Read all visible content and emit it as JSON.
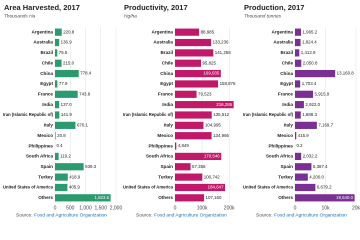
{
  "chart_data": [
    {
      "type": "bar",
      "orientation": "horizontal",
      "title": "Area Harvested, 2017",
      "subtitle": "Thousands Ha",
      "color": "#2b9a6e",
      "categories": [
        "Argentina",
        "Australia",
        "Brazil",
        "Chile",
        "China",
        "Egypt",
        "France",
        "India",
        "Iran (Islamic Republic of)",
        "Italy",
        "Mexico",
        "Philippines",
        "South Africa",
        "Spain",
        "Turkey",
        "United States of America",
        "Others"
      ],
      "values": [
        220.8,
        136.9,
        75.5,
        215.0,
        778.4,
        77.9,
        743.8,
        137.0,
        141.9,
        670.1,
        20.8,
        0.4,
        119.2,
        939.3,
        418.9,
        405.9,
        1823.5
      ],
      "value_labels": [
        "220.8",
        "136.9",
        "75.5",
        "215.0",
        "778.4",
        "77.9",
        "743.8",
        "137.0",
        "141.9",
        "670.1",
        "20.8",
        "0.4",
        "119.2",
        "939.3",
        "418.9",
        "405.9",
        "1,823.5"
      ],
      "xlim": [
        0,
        2000
      ],
      "xticks": [
        0,
        500,
        {
          "value": 1000,
          "label": "1,000"
        },
        {
          "value": 1500,
          "label": "1,500"
        },
        {
          "value": 2000,
          "label": "2,000"
        }
      ],
      "grid": true,
      "source_label": "Source:",
      "source": "Food and Agriculture Organization"
    },
    {
      "type": "bar",
      "orientation": "horizontal",
      "title": "Productivity, 2017",
      "subtitle": "Hg/ha",
      "color": "#c2186a",
      "categories": [
        "Argentina",
        "Australia",
        "Brazil",
        "Chile",
        "China",
        "Egypt",
        "France",
        "India",
        "Iran (Islamic Republic of)",
        "Italy",
        "Mexico",
        "Philippines",
        "South Africa",
        "Spain",
        "Turkey",
        "United States of America",
        "Others"
      ],
      "values": [
        88985,
        133236,
        141258,
        95825,
        169035,
        158876,
        79523,
        216285,
        135512,
        104995,
        134966,
        4849,
        170546,
        57356,
        100742,
        184647,
        107160
      ],
      "value_labels": [
        "88,985",
        "133,236",
        "141,258",
        "95,825",
        "169,035",
        "158,876",
        "79,523",
        "216,285",
        "135,512",
        "104,995",
        "134,966",
        "4,849",
        "170,546",
        "57,356",
        "100,742",
        "184,647",
        "107,160"
      ],
      "xlim": [
        0,
        225000
      ],
      "xticks": [
        0,
        {
          "value": 100000,
          "label": "100k"
        },
        {
          "value": 200000,
          "label": "200k"
        }
      ],
      "grid": true,
      "source_label": "Source:",
      "source": "Food and Agriculture Organization"
    },
    {
      "type": "bar",
      "orientation": "horizontal",
      "title": "Production, 2017",
      "subtitle": "Thousand tonnes",
      "color": "#7b2f92",
      "categories": [
        "Argentina",
        "Australia",
        "Brazil",
        "Chile",
        "China",
        "Egypt",
        "France",
        "India",
        "Iran (Islamic Republic of)",
        "Italy",
        "Mexico",
        "Philippines",
        "South Africa",
        "Spain",
        "Turkey",
        "United States of America",
        "Others"
      ],
      "values": [
        1965.2,
        1824.4,
        1412.9,
        2050.8,
        13160.8,
        1703.4,
        5915.9,
        2922.0,
        1888.3,
        7169.7,
        415.9,
        0.2,
        2032.2,
        5387.4,
        4200.0,
        6679.2,
        19540.0
      ],
      "value_labels": [
        "1,965.2",
        "1,824.4",
        "1,412.9",
        "2,050.8",
        "13,160.8",
        "1,703.4",
        "5,915.9",
        "2,922.0",
        "1,888.3",
        "7,169.7",
        "415.9",
        "0.2",
        "2,032.2",
        "5,387.4",
        "4,200.0",
        "6,679.2",
        "19,540.0"
      ],
      "xlim": [
        0,
        20000
      ],
      "xticks": [
        0,
        {
          "value": 10000,
          "label": "10k"
        },
        {
          "value": 20000,
          "label": "20k"
        }
      ],
      "grid": true,
      "source_label": "Source:",
      "source": "Food and Agriculture Organization"
    }
  ]
}
